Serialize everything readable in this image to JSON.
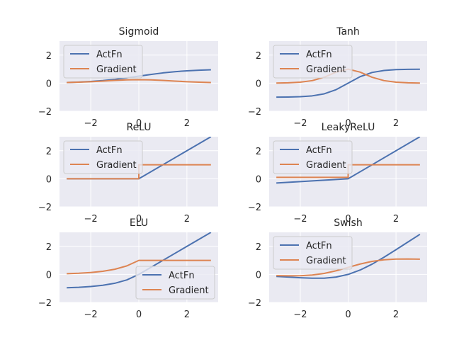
{
  "chart_data": [
    {
      "type": "line",
      "title": "Sigmoid",
      "xlim": [
        -3.3,
        3.3
      ],
      "ylim": [
        -2,
        3
      ],
      "xticks": [
        -2,
        0,
        2
      ],
      "yticks": [
        -2,
        0,
        2
      ],
      "grid": true,
      "legend_position": "upper left",
      "series": [
        {
          "name": "ActFn",
          "color": "#4c72b0",
          "x": [
            -3,
            -2.5,
            -2,
            -1.5,
            -1,
            -0.5,
            0,
            0.5,
            1,
            1.5,
            2,
            2.5,
            3
          ],
          "y": [
            0.047,
            0.076,
            0.119,
            0.182,
            0.269,
            0.378,
            0.5,
            0.622,
            0.731,
            0.818,
            0.881,
            0.924,
            0.953
          ]
        },
        {
          "name": "Gradient",
          "color": "#dd8452",
          "x": [
            -3,
            -2.5,
            -2,
            -1.5,
            -1,
            -0.5,
            0,
            0.5,
            1,
            1.5,
            2,
            2.5,
            3
          ],
          "y": [
            0.045,
            0.07,
            0.105,
            0.149,
            0.197,
            0.235,
            0.25,
            0.235,
            0.197,
            0.149,
            0.105,
            0.07,
            0.045
          ]
        }
      ]
    },
    {
      "type": "line",
      "title": "Tanh",
      "xlim": [
        -3.3,
        3.3
      ],
      "ylim": [
        -2,
        3
      ],
      "xticks": [
        -2,
        0,
        2
      ],
      "yticks": [
        -2,
        0,
        2
      ],
      "grid": true,
      "legend_position": "upper left",
      "series": [
        {
          "name": "ActFn",
          "color": "#4c72b0",
          "x": [
            -3,
            -2.5,
            -2,
            -1.5,
            -1,
            -0.5,
            0,
            0.5,
            1,
            1.5,
            2,
            2.5,
            3
          ],
          "y": [
            -0.995,
            -0.987,
            -0.964,
            -0.905,
            -0.762,
            -0.462,
            0,
            0.462,
            0.762,
            0.905,
            0.964,
            0.987,
            0.995
          ]
        },
        {
          "name": "Gradient",
          "color": "#dd8452",
          "x": [
            -3,
            -2.5,
            -2,
            -1.5,
            -1,
            -0.5,
            0,
            0.5,
            1,
            1.5,
            2,
            2.5,
            3
          ],
          "y": [
            0.01,
            0.027,
            0.071,
            0.181,
            0.42,
            0.786,
            1,
            0.786,
            0.42,
            0.181,
            0.071,
            0.027,
            0.01
          ]
        }
      ]
    },
    {
      "type": "line",
      "title": "ReLU",
      "xlim": [
        -3.3,
        3.3
      ],
      "ylim": [
        -2,
        3
      ],
      "xticks": [
        -2,
        0,
        2
      ],
      "yticks": [
        -2,
        0,
        2
      ],
      "grid": true,
      "legend_position": "upper left",
      "series": [
        {
          "name": "ActFn",
          "color": "#4c72b0",
          "x": [
            -3,
            0,
            3
          ],
          "y": [
            0,
            0,
            3
          ]
        },
        {
          "name": "Gradient",
          "color": "#dd8452",
          "x": [
            -3,
            0,
            0,
            3
          ],
          "y": [
            0,
            0,
            1,
            1
          ]
        }
      ]
    },
    {
      "type": "line",
      "title": "LeakyReLU",
      "xlim": [
        -3.3,
        3.3
      ],
      "ylim": [
        -2,
        3
      ],
      "xticks": [
        -2,
        0,
        2
      ],
      "yticks": [
        -2,
        0,
        2
      ],
      "grid": true,
      "legend_position": "upper left",
      "series": [
        {
          "name": "ActFn",
          "color": "#4c72b0",
          "x": [
            -3,
            0,
            3
          ],
          "y": [
            -0.3,
            0,
            3
          ]
        },
        {
          "name": "Gradient",
          "color": "#dd8452",
          "x": [
            -3,
            0,
            0,
            3
          ],
          "y": [
            0.1,
            0.1,
            1,
            1
          ]
        }
      ]
    },
    {
      "type": "line",
      "title": "ELU",
      "xlim": [
        -3.3,
        3.3
      ],
      "ylim": [
        -2,
        3
      ],
      "xticks": [
        -2,
        0,
        2
      ],
      "yticks": [
        -2,
        0,
        2
      ],
      "grid": true,
      "legend_position": "lower right",
      "series": [
        {
          "name": "ActFn",
          "color": "#4c72b0",
          "x": [
            -3,
            -2.5,
            -2,
            -1.5,
            -1,
            -0.5,
            0,
            3
          ],
          "y": [
            -0.95,
            -0.918,
            -0.865,
            -0.777,
            -0.632,
            -0.393,
            0,
            3
          ]
        },
        {
          "name": "Gradient",
          "color": "#dd8452",
          "x": [
            -3,
            -2.5,
            -2,
            -1.5,
            -1,
            -0.5,
            0,
            0,
            3
          ],
          "y": [
            0.05,
            0.082,
            0.135,
            0.223,
            0.368,
            0.607,
            1,
            1,
            1
          ]
        }
      ]
    },
    {
      "type": "line",
      "title": "Swish",
      "xlim": [
        -3.3,
        3.3
      ],
      "ylim": [
        -2,
        3
      ],
      "xticks": [
        -2,
        0,
        2
      ],
      "yticks": [
        -2,
        0,
        2
      ],
      "grid": true,
      "legend_position": "upper left",
      "series": [
        {
          "name": "ActFn",
          "color": "#4c72b0",
          "x": [
            -3,
            -2.5,
            -2,
            -1.5,
            -1,
            -0.5,
            0,
            0.5,
            1,
            1.5,
            2,
            2.5,
            3
          ],
          "y": [
            -0.142,
            -0.189,
            -0.238,
            -0.273,
            -0.269,
            -0.189,
            0,
            0.311,
            0.731,
            1.227,
            1.762,
            2.311,
            2.858
          ]
        },
        {
          "name": "Gradient",
          "color": "#dd8452",
          "x": [
            -3,
            -2.5,
            -2,
            -1.5,
            -1,
            -0.5,
            0,
            0.5,
            1,
            1.5,
            2,
            2.5,
            3
          ],
          "y": [
            -0.088,
            -0.1,
            -0.091,
            -0.042,
            0.072,
            0.26,
            0.5,
            0.74,
            0.928,
            1.042,
            1.091,
            1.1,
            1.088
          ]
        }
      ]
    }
  ]
}
